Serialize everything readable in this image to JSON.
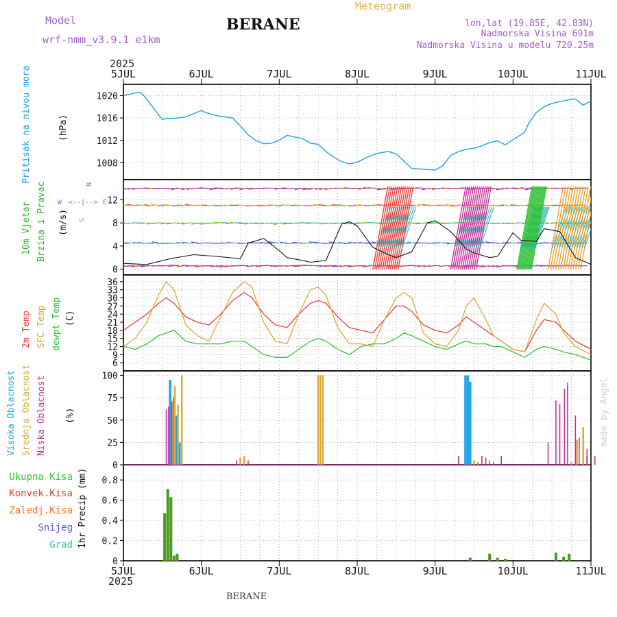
{
  "header": {
    "model_label": "Model",
    "model_name": "wrf-nmm_v3.9.1 e1km",
    "station": "BERANE",
    "product": "Meteogram",
    "lonlat": "lon,lat (19.85E, 42.83N)",
    "elevation": "Nadmorska Visina 691m",
    "model_elevation": "Nadmorska Visina u modelu 720.25m",
    "year_top": "2025",
    "year_bottom": "2025",
    "footer_station": "BERANE",
    "credit": "made by Angel"
  },
  "colors": {
    "pressure": "#1fa0e6",
    "temp2m": "#e8413c",
    "sfc": "#d9a93a",
    "dewpt": "#33c23a",
    "high_cloud": "#1ea6e8",
    "mid_cloud": "#d9a93a",
    "low_cloud": "#c8309a",
    "total_precip": "#4a9a1e",
    "conv": "#e8413c",
    "frozen": "#f07a2a",
    "snow": "#5a5ae0",
    "hail": "#33c2b4",
    "wind_label": "#2bb52b",
    "compass": "#a060d0"
  },
  "chart_data": [
    {
      "type": "line",
      "panel": "pressure",
      "ylabel": "Pritisak na nivou mora",
      "unit": "(hPa)",
      "x_ticks": [
        "5JUL",
        "6JUL",
        "7JUL",
        "8JUL",
        "9JUL",
        "10JUL",
        "11JUL"
      ],
      "y_ticks": [
        1008,
        1012,
        1016,
        1020
      ],
      "ylim": [
        1005,
        1022
      ],
      "series": [
        {
          "values_x_days": [
            0,
            0.1,
            0.2,
            0.25,
            0.3,
            0.4,
            0.5,
            0.55,
            0.6,
            0.7,
            0.8,
            1.0,
            1.05,
            1.2,
            1.3,
            1.4,
            1.5,
            1.6,
            1.7,
            1.8,
            1.9,
            2.0,
            2.1,
            2.2,
            2.3,
            2.4,
            2.5,
            2.6,
            2.7,
            2.8,
            2.9,
            3.0,
            3.1,
            3.2,
            3.3,
            3.4,
            3.5,
            3.6,
            3.7,
            3.8,
            3.9,
            4.0,
            4.1,
            4.2,
            4.3,
            4.4,
            4.5,
            4.6,
            4.7,
            4.8,
            4.9,
            5.0,
            5.1,
            5.15,
            5.2,
            5.3,
            5.35,
            5.4,
            5.5,
            5.6,
            5.7,
            5.8,
            5.9,
            6.0
          ],
          "values": [
            1020.0,
            1020.3,
            1020.6,
            1020.2,
            1019.3,
            1017.5,
            1015.7,
            1015.9,
            1015.9,
            1016.0,
            1016.2,
            1017.3,
            1017.0,
            1016.4,
            1016.2,
            1016.0,
            1014.6,
            1013.0,
            1012.0,
            1011.4,
            1011.5,
            1012.0,
            1012.9,
            1012.6,
            1012.3,
            1011.5,
            1011.3,
            1010.0,
            1009.0,
            1008.2,
            1007.8,
            1008.1,
            1008.8,
            1009.4,
            1009.8,
            1010.0,
            1009.6,
            1008.3,
            1007.0,
            1006.9,
            1006.8,
            1006.7,
            1007.5,
            1009.3,
            1010.0,
            1010.4,
            1010.6,
            1011.0,
            1011.6,
            1011.9,
            1011.2,
            1012.1,
            1013.0,
            1013.5,
            1015.0,
            1017.0,
            1017.5,
            1018.0,
            1018.6,
            1018.9,
            1019.2,
            1019.4,
            1018.3,
            1019.0
          ]
        }
      ]
    },
    {
      "type": "line",
      "panel": "wind",
      "ylabel": "10m Vjetar",
      "ylabel2": "Brzina i Pravac",
      "unit": "(m/s)",
      "compass": [
        "N",
        "E",
        "S",
        "W"
      ],
      "y_ticks": [
        0,
        4,
        8,
        12
      ],
      "ylim": [
        -1,
        15.5
      ],
      "series": [
        {
          "name": "speed",
          "values_x_days": [
            0,
            0.3,
            0.6,
            0.9,
            1.2,
            1.5,
            1.6,
            1.8,
            2.0,
            2.1,
            2.3,
            2.4,
            2.6,
            2.8,
            2.9,
            3.0,
            3.2,
            3.4,
            3.5,
            3.7,
            3.9,
            4.0,
            4.2,
            4.4,
            4.5,
            4.7,
            4.8,
            5.0,
            5.1,
            5.3,
            5.4,
            5.6,
            5.8,
            6.0
          ],
          "values": [
            1.0,
            0.8,
            1.8,
            2.5,
            2.2,
            1.8,
            4.5,
            5.3,
            3.2,
            2.0,
            1.5,
            1.2,
            1.5,
            7.8,
            8.2,
            7.5,
            3.8,
            2.5,
            2.0,
            3.0,
            8.0,
            8.4,
            6.5,
            3.5,
            2.8,
            2.0,
            2.2,
            6.3,
            5.0,
            4.8,
            7.0,
            6.5,
            2.0,
            0.8
          ]
        }
      ]
    },
    {
      "type": "line",
      "panel": "temperature",
      "ylabels": [
        "2m Temp",
        "SFC Temp",
        "dewpt Temp"
      ],
      "unit": "(C)",
      "y_ticks": [
        6,
        9,
        12,
        15,
        18,
        21,
        24,
        27,
        30,
        33,
        36
      ],
      "ylim": [
        3,
        38.5
      ],
      "x_days": [
        0,
        0.15,
        0.3,
        0.45,
        0.55,
        0.65,
        0.8,
        0.95,
        1.1,
        1.25,
        1.4,
        1.55,
        1.65,
        1.8,
        1.95,
        2.1,
        2.25,
        2.4,
        2.5,
        2.6,
        2.75,
        2.9,
        3.05,
        3.2,
        3.35,
        3.5,
        3.6,
        3.7,
        3.85,
        4.0,
        4.15,
        4.3,
        4.4,
        4.5,
        4.65,
        4.75,
        4.85,
        5.0,
        5.15,
        5.3,
        5.4,
        5.55,
        5.65,
        5.8,
        6.0
      ],
      "series": [
        {
          "name": "2m Temp",
          "values": [
            18,
            21,
            24,
            28,
            30,
            28,
            23,
            21,
            20,
            24,
            29,
            32,
            30,
            24,
            20,
            19,
            24,
            28,
            29,
            28,
            23,
            19,
            18,
            17,
            22,
            27,
            27,
            25,
            20,
            18,
            17,
            20,
            23,
            21,
            18,
            16,
            14,
            11,
            10,
            18,
            22,
            21,
            18,
            14,
            11
          ]
        },
        {
          "name": "SFC Temp",
          "values": [
            12,
            15,
            21,
            31,
            36,
            33,
            20,
            16,
            14,
            23,
            32,
            36,
            34,
            21,
            14,
            13,
            24,
            33,
            34,
            31,
            19,
            13,
            13,
            12,
            22,
            30,
            32,
            30,
            17,
            13,
            12,
            18,
            27,
            30,
            22,
            16,
            14,
            11,
            10,
            22,
            28,
            24,
            17,
            12,
            9
          ]
        },
        {
          "name": "dewpt Temp",
          "values": [
            12,
            11,
            13,
            16,
            17,
            18,
            14,
            13,
            13,
            13,
            14,
            14,
            12,
            9,
            8,
            8,
            11,
            14,
            15,
            14,
            11,
            9,
            12,
            13,
            13,
            15,
            17,
            16,
            14,
            12,
            11,
            13,
            14,
            13,
            13,
            12,
            12,
            10,
            8,
            11,
            12,
            11,
            10,
            9,
            7
          ]
        }
      ]
    },
    {
      "type": "bar",
      "panel": "clouds",
      "ylabels": [
        "Visoka Oblacnost",
        "Srednja Oblacnost",
        "Niska Oblacnost"
      ],
      "unit": "(%)",
      "y_ticks": [
        0,
        25,
        50,
        75,
        100
      ],
      "ylim": [
        0,
        105
      ],
      "series": [
        {
          "name": "Visoka Oblacnost",
          "x_days": [
            0.6,
            0.65,
            0.68,
            0.72,
            4.39,
            4.42,
            4.45
          ],
          "values": [
            95,
            75,
            55,
            25,
            100,
            100,
            93
          ]
        },
        {
          "name": "Srednja Oblacnost",
          "x_days": [
            0.63,
            0.66,
            0.7,
            0.75,
            1.5,
            1.55,
            2.5,
            2.53,
            2.56,
            4.5,
            4.55,
            5.75,
            5.82,
            5.9,
            5.95
          ],
          "values": [
            72,
            88,
            67,
            100,
            8,
            10,
            100,
            100,
            100,
            5,
            3,
            3,
            28,
            42,
            10
          ]
        },
        {
          "name": "Niska Oblacnost",
          "x_days": [
            0.55,
            0.58,
            0.62,
            1.45,
            1.6,
            4.3,
            4.6,
            4.65,
            4.7,
            4.75,
            4.85,
            5.45,
            5.55,
            5.6,
            5.66,
            5.7,
            5.8,
            5.95,
            6.05,
            5.85
          ],
          "values": [
            62,
            65,
            70,
            5,
            5,
            10,
            10,
            8,
            5,
            3,
            10,
            25,
            72,
            68,
            85,
            92,
            55,
            18,
            10,
            30
          ]
        }
      ]
    },
    {
      "type": "bar",
      "panel": "precip",
      "ylabels": [
        "Ukupna Kisa",
        "Konvek.Kisa",
        "Zaledj.Kisa",
        "Snijeg",
        "Grad"
      ],
      "unit": "1hr Precip (mm)",
      "y_ticks": [
        0,
        0.2,
        0.4,
        0.6,
        0.8
      ],
      "ylim": [
        0,
        0.95
      ],
      "series": [
        {
          "name": "Ukupna Kisa",
          "x_days": [
            0.53,
            0.57,
            0.61,
            0.65,
            0.69,
            4.45,
            4.7,
            4.8,
            4.9,
            5.55,
            5.65,
            5.72
          ],
          "values": [
            0.47,
            0.71,
            0.63,
            0.05,
            0.07,
            0.03,
            0.07,
            0.03,
            0.02,
            0.08,
            0.04,
            0.07
          ]
        }
      ]
    }
  ]
}
